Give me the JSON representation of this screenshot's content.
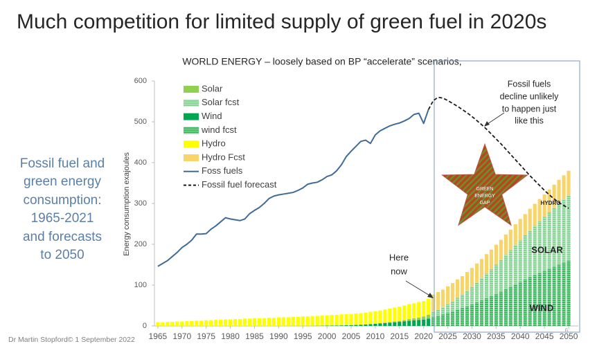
{
  "slide": {
    "title": "Much competition for limited supply of green fuel in 2020s",
    "side_text": [
      "Fossil fuel and",
      "green energy",
      "consumption:",
      "1965-2021",
      "and forecasts",
      "to 2050"
    ],
    "footer": "Dr Martin Stopford© 1 September 2022",
    "page_number": 6
  },
  "chart_data": {
    "type": "stacked-bar-line",
    "title": "WORLD ENERGY – loosely based on BP “accelerate” scenarios,",
    "y_label": "Energy consumption exajoules",
    "grid": false,
    "xlim": [
      1964.3,
      2052
    ],
    "ylim": [
      0,
      600
    ],
    "xticks": [
      1965,
      1970,
      1975,
      1980,
      1985,
      1990,
      1995,
      2000,
      2005,
      2010,
      2015,
      2020,
      2025,
      2030,
      2035,
      2040,
      2045,
      2050
    ],
    "yticks": [
      0,
      100,
      200,
      300,
      400,
      500,
      600
    ],
    "annotations": {
      "fossil_note": [
        "Fossil fuels",
        "decline  unlikely",
        "to happen just",
        "like this"
      ],
      "here_note": [
        "Here",
        "now"
      ],
      "star_label": [
        "GREEN",
        "ENERGY",
        "GAP"
      ],
      "hydro": "HYDRO",
      "solar": "SOLAR",
      "wind": "WIND"
    },
    "x": [
      1965,
      1966,
      1967,
      1968,
      1969,
      1970,
      1971,
      1972,
      1973,
      1974,
      1975,
      1976,
      1977,
      1978,
      1979,
      1980,
      1981,
      1982,
      1983,
      1984,
      1985,
      1986,
      1987,
      1988,
      1989,
      1990,
      1991,
      1992,
      1993,
      1994,
      1995,
      1996,
      1997,
      1998,
      1999,
      2000,
      2001,
      2002,
      2003,
      2004,
      2005,
      2006,
      2007,
      2008,
      2009,
      2010,
      2011,
      2012,
      2013,
      2014,
      2015,
      2016,
      2017,
      2018,
      2019,
      2020,
      2021,
      2022,
      2023,
      2024,
      2025,
      2026,
      2027,
      2028,
      2029,
      2030,
      2031,
      2032,
      2033,
      2034,
      2035,
      2036,
      2037,
      2038,
      2039,
      2040,
      2041,
      2042,
      2043,
      2044,
      2045,
      2046,
      2047,
      2048,
      2049,
      2050
    ],
    "series": [
      {
        "name": "Solar",
        "type": "bar",
        "color": "#92d050",
        "values": [
          null,
          null,
          null,
          null,
          null,
          null,
          null,
          null,
          null,
          null,
          null,
          null,
          null,
          null,
          null,
          null,
          null,
          null,
          null,
          null,
          null,
          null,
          null,
          null,
          null,
          null,
          null,
          null,
          null,
          null,
          null,
          null,
          null,
          null,
          null,
          0.1,
          0.1,
          0.1,
          0.1,
          0.1,
          0.1,
          0.1,
          0.1,
          0.2,
          0.3,
          0.5,
          0.8,
          1.2,
          1.5,
          2,
          2.5,
          3.2,
          4.2,
          5,
          6,
          7.5,
          9.5,
          null,
          null,
          null,
          null,
          null,
          null,
          null,
          null,
          null,
          null,
          null,
          null,
          null,
          null,
          null,
          null,
          null,
          null,
          null,
          null,
          null,
          null,
          null,
          null,
          null,
          null,
          null,
          null,
          null
        ]
      },
      {
        "name": "Solar fcst",
        "type": "bar",
        "pattern": "stripes",
        "color": "#86d493",
        "values": [
          null,
          null,
          null,
          null,
          null,
          null,
          null,
          null,
          null,
          null,
          null,
          null,
          null,
          null,
          null,
          null,
          null,
          null,
          null,
          null,
          null,
          null,
          null,
          null,
          null,
          null,
          null,
          null,
          null,
          null,
          null,
          null,
          null,
          null,
          null,
          null,
          null,
          null,
          null,
          null,
          null,
          null,
          null,
          null,
          null,
          null,
          null,
          null,
          null,
          null,
          null,
          null,
          null,
          null,
          null,
          null,
          null,
          13,
          15,
          18,
          21,
          25,
          29,
          33,
          38,
          43,
          48,
          54,
          60,
          66,
          72,
          78,
          84,
          90,
          96,
          102,
          108,
          114,
          120,
          126,
          132,
          138,
          144,
          150,
          155,
          160
        ]
      },
      {
        "name": "Wind",
        "type": "bar",
        "color": "#00a651",
        "values": [
          null,
          null,
          null,
          null,
          null,
          null,
          null,
          null,
          null,
          null,
          null,
          null,
          null,
          null,
          null,
          null,
          null,
          null,
          null,
          null,
          null,
          null,
          null,
          null,
          null,
          0.1,
          0.1,
          0.2,
          0.2,
          0.3,
          0.3,
          0.3,
          0.4,
          0.5,
          0.6,
          0.8,
          0.9,
          1.1,
          1.4,
          1.6,
          2,
          2.4,
          3,
          3.6,
          4.3,
          5.1,
          6,
          7,
          8,
          9,
          10,
          11,
          12.5,
          13.5,
          14.5,
          15.5,
          18,
          null,
          null,
          null,
          null,
          null,
          null,
          null,
          null,
          null,
          null,
          null,
          null,
          null,
          null,
          null,
          null,
          null,
          null,
          null,
          null,
          null,
          null,
          null,
          null,
          null,
          null,
          null,
          null,
          null
        ]
      },
      {
        "name": "wind fcst",
        "type": "bar",
        "pattern": "stripes",
        "color": "#3cb95f",
        "values": [
          null,
          null,
          null,
          null,
          null,
          null,
          null,
          null,
          null,
          null,
          null,
          null,
          null,
          null,
          null,
          null,
          null,
          null,
          null,
          null,
          null,
          null,
          null,
          null,
          null,
          null,
          null,
          null,
          null,
          null,
          null,
          null,
          null,
          null,
          null,
          null,
          null,
          null,
          null,
          null,
          null,
          null,
          null,
          null,
          null,
          null,
          null,
          null,
          null,
          null,
          null,
          null,
          null,
          null,
          null,
          null,
          null,
          22,
          25,
          28,
          32,
          36,
          40,
          44,
          48,
          53,
          58,
          63,
          68,
          73,
          78,
          84,
          90,
          96,
          102,
          108,
          114,
          120,
          125,
          130,
          135,
          140,
          145,
          150,
          155,
          160
        ]
      },
      {
        "name": "Hydro",
        "type": "bar",
        "color": "#ffff00",
        "values": [
          9,
          9,
          10,
          10,
          11,
          11,
          12,
          12,
          13,
          13,
          14,
          14,
          15,
          15,
          16,
          16,
          17,
          17,
          18,
          18,
          19,
          19,
          19,
          20,
          20,
          21,
          21,
          21,
          22,
          22,
          23,
          23,
          24,
          24,
          25,
          25,
          26,
          26,
          27,
          27,
          27,
          28,
          28,
          29,
          30,
          30,
          31,
          32,
          33,
          34,
          35,
          36,
          37,
          37,
          38,
          38,
          39,
          null,
          null,
          null,
          null,
          null,
          null,
          null,
          null,
          null,
          null,
          null,
          null,
          null,
          null,
          null,
          null,
          null,
          null,
          null,
          null,
          null,
          null,
          null,
          null,
          null,
          null,
          null,
          null,
          null
        ]
      },
      {
        "name": "Hydro Fcst",
        "type": "bar",
        "color": "#f7d56b",
        "values": [
          null,
          null,
          null,
          null,
          null,
          null,
          null,
          null,
          null,
          null,
          null,
          null,
          null,
          null,
          null,
          null,
          null,
          null,
          null,
          null,
          null,
          null,
          null,
          null,
          null,
          null,
          null,
          null,
          null,
          null,
          null,
          null,
          null,
          null,
          null,
          null,
          null,
          null,
          null,
          null,
          null,
          null,
          null,
          null,
          null,
          null,
          null,
          null,
          null,
          null,
          null,
          null,
          null,
          null,
          null,
          null,
          null,
          42,
          43,
          43,
          44,
          44,
          45,
          45,
          46,
          46,
          47,
          47,
          48,
          48,
          49,
          49,
          50,
          50,
          51,
          52,
          52,
          53,
          54,
          55,
          55,
          56,
          57,
          58,
          59,
          60
        ]
      },
      {
        "name": "Foss fuels",
        "type": "line",
        "color": "#3f6b96",
        "values": [
          146,
          153,
          160,
          170,
          180,
          192,
          200,
          210,
          225,
          225,
          226,
          237,
          245,
          255,
          265,
          262,
          260,
          258,
          262,
          275,
          283,
          290,
          300,
          312,
          318,
          321,
          323,
          325,
          327,
          332,
          338,
          347,
          350,
          352,
          358,
          366,
          370,
          380,
          395,
          415,
          428,
          440,
          452,
          455,
          447,
          468,
          478,
          484,
          490,
          494,
          497,
          502,
          508,
          518,
          521,
          496,
          530,
          null,
          null,
          null,
          null,
          null,
          null,
          null,
          null,
          null,
          null,
          null,
          null,
          null,
          null,
          null,
          null,
          null,
          null,
          null,
          null,
          null,
          null,
          null,
          null,
          null,
          null,
          null,
          null,
          null
        ]
      },
      {
        "name": "Fossil fuel forecast",
        "type": "line",
        "dash": true,
        "color": "#1a1a1a",
        "values": [
          null,
          null,
          null,
          null,
          null,
          null,
          null,
          null,
          null,
          null,
          null,
          null,
          null,
          null,
          null,
          null,
          null,
          null,
          null,
          null,
          null,
          null,
          null,
          null,
          null,
          null,
          null,
          null,
          null,
          null,
          null,
          null,
          null,
          null,
          null,
          null,
          null,
          null,
          null,
          null,
          null,
          null,
          null,
          null,
          null,
          null,
          null,
          null,
          null,
          null,
          null,
          null,
          null,
          null,
          null,
          null,
          530,
          552,
          560,
          558,
          552,
          545,
          538,
          530,
          522,
          513,
          503,
          493,
          482,
          470,
          458,
          446,
          433,
          420,
          407,
          394,
          381,
          368,
          356,
          344,
          332,
          321,
          311,
          302,
          295,
          288
        ]
      }
    ]
  }
}
